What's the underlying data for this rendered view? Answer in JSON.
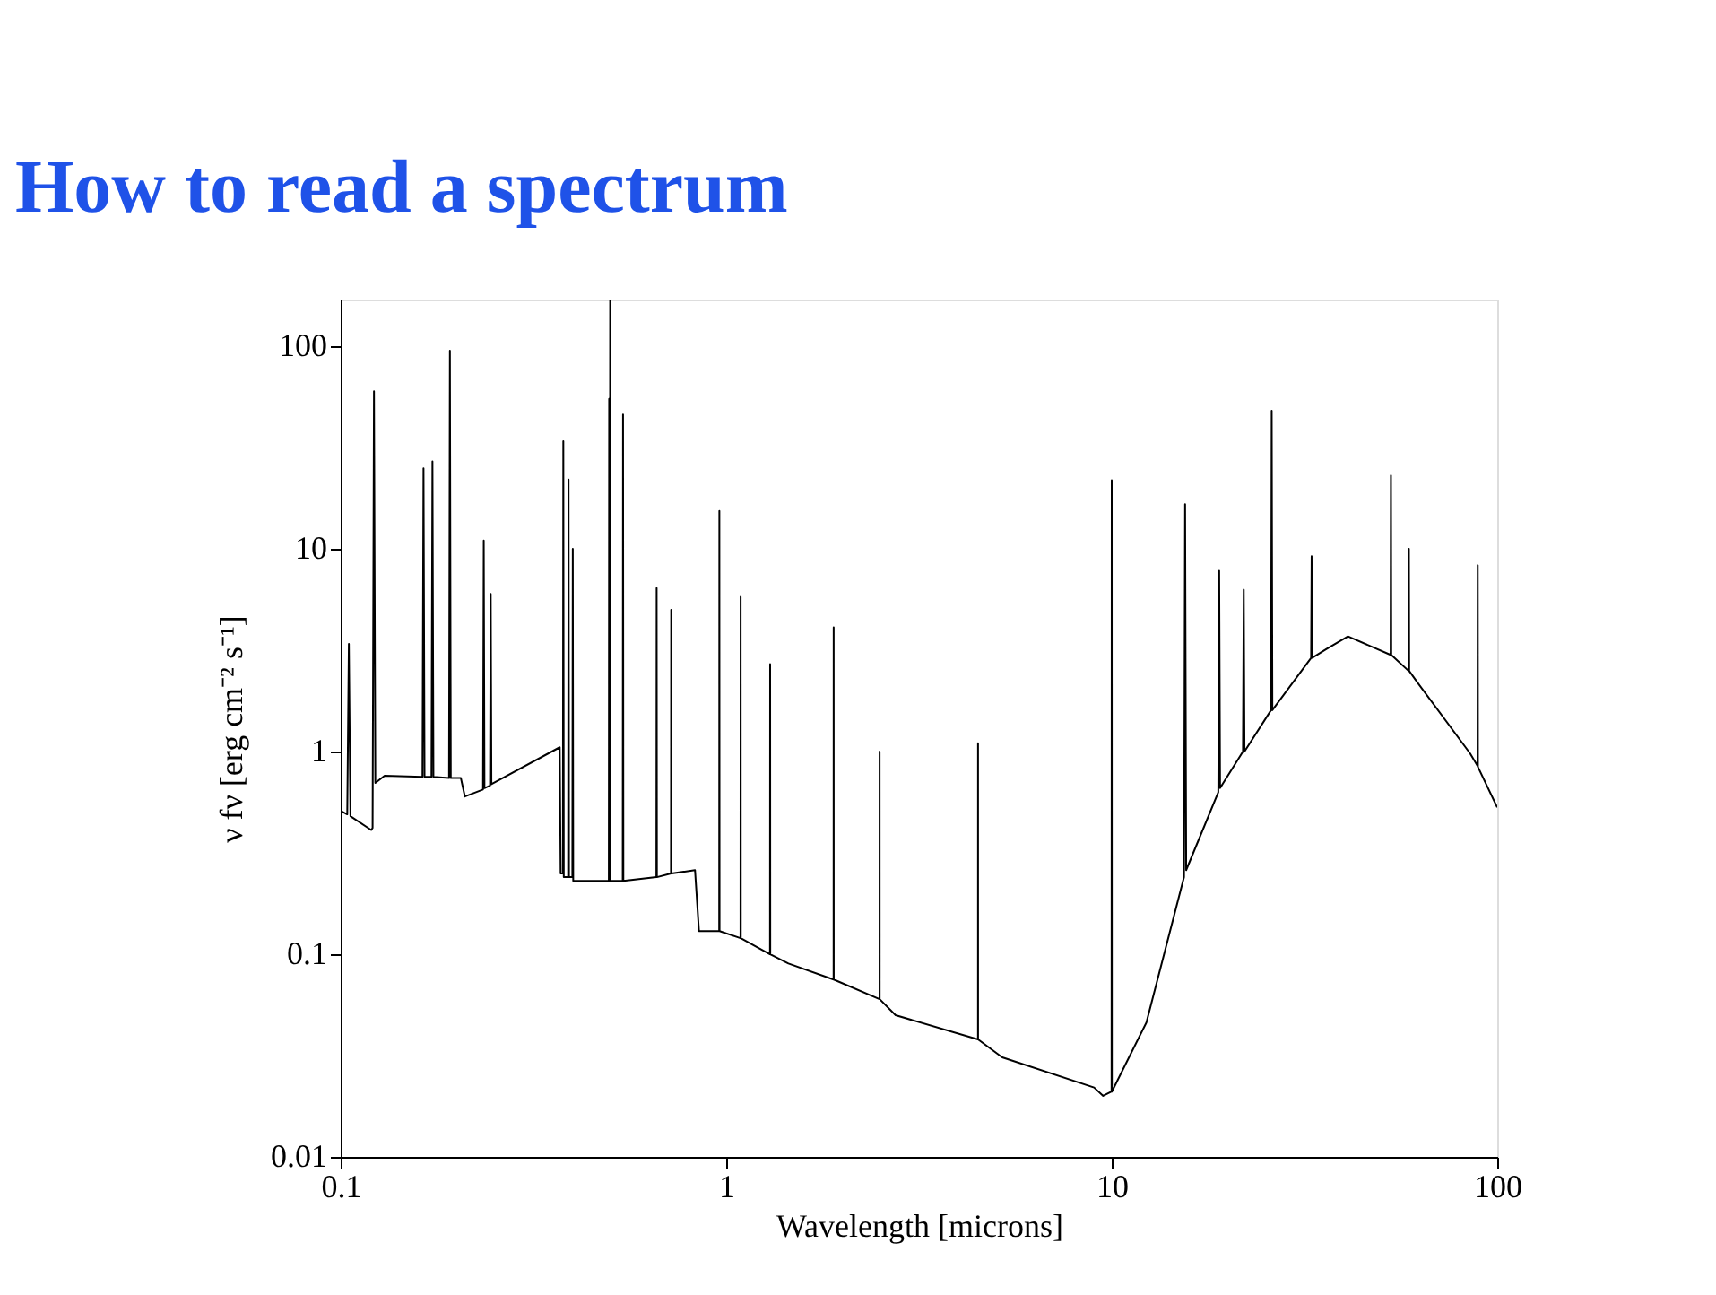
{
  "chart_data": {
    "type": "line",
    "title": "How to read a spectrum",
    "xlabel": "Wavelength [microns]",
    "ylabel": "ν fν [erg cm⁻² s⁻¹]",
    "log": "xy",
    "xlim": [
      0.1,
      100
    ],
    "ylim": [
      0.01,
      170
    ],
    "xticks": [
      0.1,
      1,
      10,
      100
    ],
    "yticks": [
      0.01,
      0.1,
      1,
      10,
      100
    ],
    "grid": false,
    "series": [
      {
        "color": "#000000",
        "x": [
          0.1,
          0.104,
          0.105,
          0.106,
          0.12,
          0.121,
          0.122,
          0.123,
          0.13,
          0.163,
          0.164,
          0.165,
          0.172,
          0.173,
          0.174,
          0.191,
          0.192,
          0.193,
          0.205,
          0.21,
          0.234,
          0.235,
          0.236,
          0.244,
          0.245,
          0.246,
          0.37,
          0.372,
          0.377,
          0.378,
          0.379,
          0.389,
          0.39,
          0.391,
          0.399,
          0.4,
          0.401,
          0.496,
          0.497,
          0.498,
          0.499,
          0.5,
          0.501,
          0.539,
          0.54,
          0.541,
          0.659,
          0.66,
          0.661,
          0.719,
          0.72,
          0.721,
          0.83,
          0.85,
          0.959,
          0.96,
          0.961,
          1.089,
          1.09,
          1.091,
          1.299,
          1.3,
          1.301,
          1.45,
          1.899,
          1.9,
          1.901,
          2.499,
          2.5,
          2.501,
          2.75,
          4.499,
          4.5,
          4.501,
          5.2,
          9,
          9.5,
          9.99,
          10,
          10.01,
          12.3,
          15.4,
          15.5,
          15.6,
          18.9,
          19,
          19.1,
          21.9,
          22,
          22.1,
          25.9,
          26,
          26.1,
          32.9,
          33,
          33.1,
          36,
          41,
          52.9,
          53,
          53.1,
          58.9,
          59,
          59.1,
          62,
          85,
          88.9,
          89,
          89.1,
          100
        ],
        "values": [
          0.51,
          0.49,
          3.4,
          0.48,
          0.41,
          0.42,
          60,
          0.7,
          0.76,
          0.75,
          25,
          0.75,
          0.75,
          27,
          0.75,
          0.74,
          95,
          0.74,
          0.74,
          0.6,
          0.65,
          11,
          0.66,
          0.68,
          6,
          0.69,
          1.05,
          0.25,
          0.25,
          34,
          0.24,
          0.24,
          22,
          0.24,
          0.24,
          10,
          0.23,
          0.23,
          55,
          0.23,
          0.23,
          170,
          0.23,
          0.23,
          46,
          0.23,
          0.24,
          6.4,
          0.24,
          0.25,
          5,
          0.25,
          0.26,
          0.13,
          0.13,
          15.4,
          0.13,
          0.12,
          5.8,
          0.12,
          0.1,
          2.7,
          0.1,
          0.09,
          0.075,
          4.1,
          0.075,
          0.06,
          1.0,
          0.06,
          0.05,
          0.038,
          1.1,
          0.038,
          0.031,
          0.022,
          0.02,
          0.021,
          21.8,
          0.021,
          0.046,
          0.24,
          16.6,
          0.26,
          0.63,
          7.8,
          0.66,
          1.0,
          6.3,
          1.0,
          1.6,
          48,
          1.6,
          2.9,
          9.2,
          2.9,
          3.2,
          3.7,
          3.0,
          23,
          3.0,
          2.5,
          10,
          2.5,
          2.2,
          0.98,
          0.85,
          8.3,
          0.84,
          0.53
        ]
      }
    ]
  }
}
